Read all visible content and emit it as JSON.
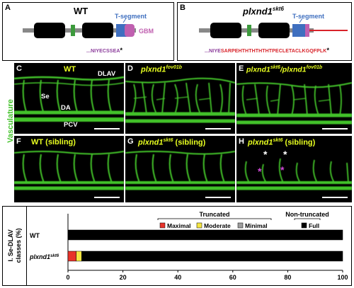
{
  "panelA": {
    "letter": "A",
    "title": "WT",
    "tsegment": "T-segment",
    "gbm": "GBM",
    "seq_prefix": "...",
    "seq": "NIYECSSEA",
    "stop": "*"
  },
  "panelB": {
    "letter": "B",
    "title": "plxnd1",
    "title_sup": "skt6",
    "tsegment": "T-segment",
    "seq_prefix": "...",
    "seq_normal": "NIYE",
    "seq_mut": "SARPEHTHTHTHTHTPECLETACLKGQFPLK",
    "stop": "*"
  },
  "vasculature_label": "Vasculature",
  "panels": [
    {
      "letter": "C",
      "label": "WT",
      "sup": "",
      "suffix": "",
      "annotations": [
        "DLAV",
        "Se",
        "DA",
        "PCV"
      ]
    },
    {
      "letter": "D",
      "label": "plxnd1",
      "sup": "fov01b",
      "suffix": "",
      "annotations": []
    },
    {
      "letter": "E",
      "label": "plxnd1",
      "sup": "skt6",
      "label2": "/plxnd1",
      "sup2": "fov01b",
      "suffix": "",
      "annotations": []
    },
    {
      "letter": "F",
      "label": "WT (sibling)",
      "sup": "",
      "suffix": "",
      "annotations": []
    },
    {
      "letter": "G",
      "label": "plxnd1",
      "sup": "skt6",
      "suffix": " (sibling)",
      "annotations": []
    },
    {
      "letter": "H",
      "label": "plxnd1",
      "sup": "skt6",
      "suffix": " (sibling)",
      "annotations": [
        "*",
        "*",
        "*",
        "*"
      ]
    }
  ],
  "panelI": {
    "letter": "I",
    "ylabel_line1": "I. Se-DLAV",
    "ylabel_line2": "classes (%)",
    "truncated_label": "Truncated",
    "nontruncated_label": "Non-truncated",
    "legend": [
      {
        "name": "Maximal",
        "color": "#e8332a"
      },
      {
        "name": "Moderate",
        "color": "#f5e642"
      },
      {
        "name": "Minimal",
        "color": "#9e9e9e"
      },
      {
        "name": "Full",
        "color": "#000000"
      }
    ]
  },
  "chart_data": {
    "type": "bar",
    "orientation": "horizontal",
    "stacked": true,
    "categories": [
      "WT",
      "plxnd1skt6"
    ],
    "category_labels": [
      {
        "text": "WT",
        "sup": ""
      },
      {
        "text": "plxnd1",
        "sup": "skt6"
      }
    ],
    "series": [
      {
        "name": "Maximal",
        "color": "#e8332a",
        "values": [
          0,
          3
        ]
      },
      {
        "name": "Moderate",
        "color": "#f5e642",
        "values": [
          0,
          2
        ]
      },
      {
        "name": "Minimal",
        "color": "#9e9e9e",
        "values": [
          0,
          0
        ]
      },
      {
        "name": "Full",
        "color": "#000000",
        "values": [
          100,
          95
        ]
      }
    ],
    "xlim": [
      0,
      100
    ],
    "xticks": [
      0,
      20,
      40,
      60,
      80,
      100
    ]
  },
  "colors": {
    "vasculature": "#43c22a",
    "label_yellow": "#e8ff20",
    "mut_red": "#d8232a",
    "seq_purple": "#8a3a9a",
    "tseg_blue": "#3f6fbf",
    "gbm_pink": "#c060b0"
  }
}
